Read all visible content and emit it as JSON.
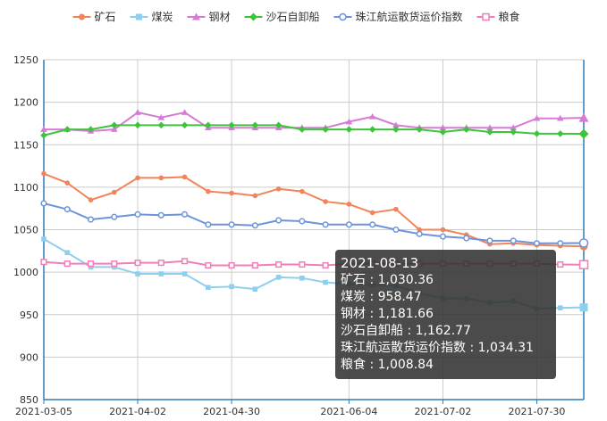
{
  "chart_data": {
    "type": "line",
    "x": [
      "2021-03-05",
      "2021-03-12",
      "2021-03-19",
      "2021-03-26",
      "2021-04-02",
      "2021-04-09",
      "2021-04-16",
      "2021-04-23",
      "2021-04-30",
      "2021-05-07",
      "2021-05-14",
      "2021-05-21",
      "2021-05-28",
      "2021-06-04",
      "2021-06-11",
      "2021-06-18",
      "2021-06-25",
      "2021-07-02",
      "2021-07-09",
      "2021-07-16",
      "2021-07-23",
      "2021-07-30",
      "2021-08-06",
      "2021-08-13"
    ],
    "xticks": [
      "2021-03-05",
      "2021-04-02",
      "2021-04-30",
      "2021-06-04",
      "2021-07-02",
      "2021-07-30"
    ],
    "yticks": [
      850,
      900,
      950,
      1000,
      1050,
      1100,
      1150,
      1200,
      1250
    ],
    "ylim": [
      850,
      1250
    ],
    "grid": true,
    "legend_position": "top",
    "series": [
      {
        "name": "矿石",
        "color": "#f0845a",
        "marker": "circle",
        "values": [
          1116,
          1105,
          1085,
          1094,
          1111,
          1111,
          1112,
          1095,
          1093,
          1090,
          1098,
          1095,
          1083,
          1080,
          1070,
          1074,
          1050,
          1050,
          1044,
          1033,
          1034,
          1032,
          1031,
          1030.36
        ]
      },
      {
        "name": "煤炭",
        "color": "#8ecfef",
        "marker": "rect",
        "values": [
          1039,
          1023,
          1006,
          1006,
          998,
          998,
          998,
          982,
          983,
          980,
          994,
          993,
          988,
          986,
          985,
          984,
          975,
          969,
          969,
          964,
          966,
          957,
          958,
          958.47
        ]
      },
      {
        "name": "钢材",
        "color": "#d77ad8",
        "marker": "triangle",
        "values": [
          1168,
          1168,
          1166,
          1168,
          1188,
          1182,
          1188,
          1170,
          1170,
          1170,
          1170,
          1170,
          1170,
          1177,
          1183,
          1173,
          1170,
          1170,
          1170,
          1170,
          1170,
          1181,
          1181,
          1181.66
        ]
      },
      {
        "name": "沙石自卸船",
        "color": "#3ec43b",
        "marker": "diamond",
        "values": [
          1161,
          1168,
          1168,
          1173,
          1173,
          1173,
          1173,
          1173,
          1173,
          1173,
          1173,
          1168,
          1168,
          1168,
          1168,
          1168,
          1168,
          1165,
          1168,
          1165,
          1165,
          1163,
          1163,
          1162.77
        ]
      },
      {
        "name": "珠江航运散货运价指数",
        "color": "#6b94dc",
        "marker": "emptyCircle",
        "values": [
          1081,
          1074,
          1062,
          1065,
          1068,
          1067,
          1068,
          1056,
          1056,
          1055,
          1061,
          1060,
          1056,
          1056,
          1056,
          1050,
          1045,
          1042,
          1040,
          1037,
          1037,
          1034,
          1034,
          1034.31
        ]
      },
      {
        "name": "粮食",
        "color": "#ef7fb6",
        "marker": "emptyRect",
        "values": [
          1012,
          1010,
          1010,
          1010,
          1011,
          1011,
          1013,
          1008,
          1008,
          1008,
          1009,
          1009,
          1008,
          1010,
          1010,
          1010,
          1010,
          1010,
          1010,
          1010,
          1010,
          1010,
          1009,
          1008.84
        ]
      }
    ]
  },
  "tooltip": {
    "date": "2021-08-13",
    "rows": [
      {
        "label": "矿石",
        "sep": " : ",
        "value": "1,030.36"
      },
      {
        "label": "煤炭",
        "sep": " : ",
        "value": "958.47"
      },
      {
        "label": "钢材",
        "sep": " : ",
        "value": "1,181.66"
      },
      {
        "label": "沙石自卸船",
        "sep": " : ",
        "value": "1,162.77"
      },
      {
        "label": "珠江航运散货运价指数",
        "sep": " : ",
        "value": "1,034.31"
      },
      {
        "label": "粮食",
        "sep": " : ",
        "value": "1,008.84"
      }
    ]
  }
}
